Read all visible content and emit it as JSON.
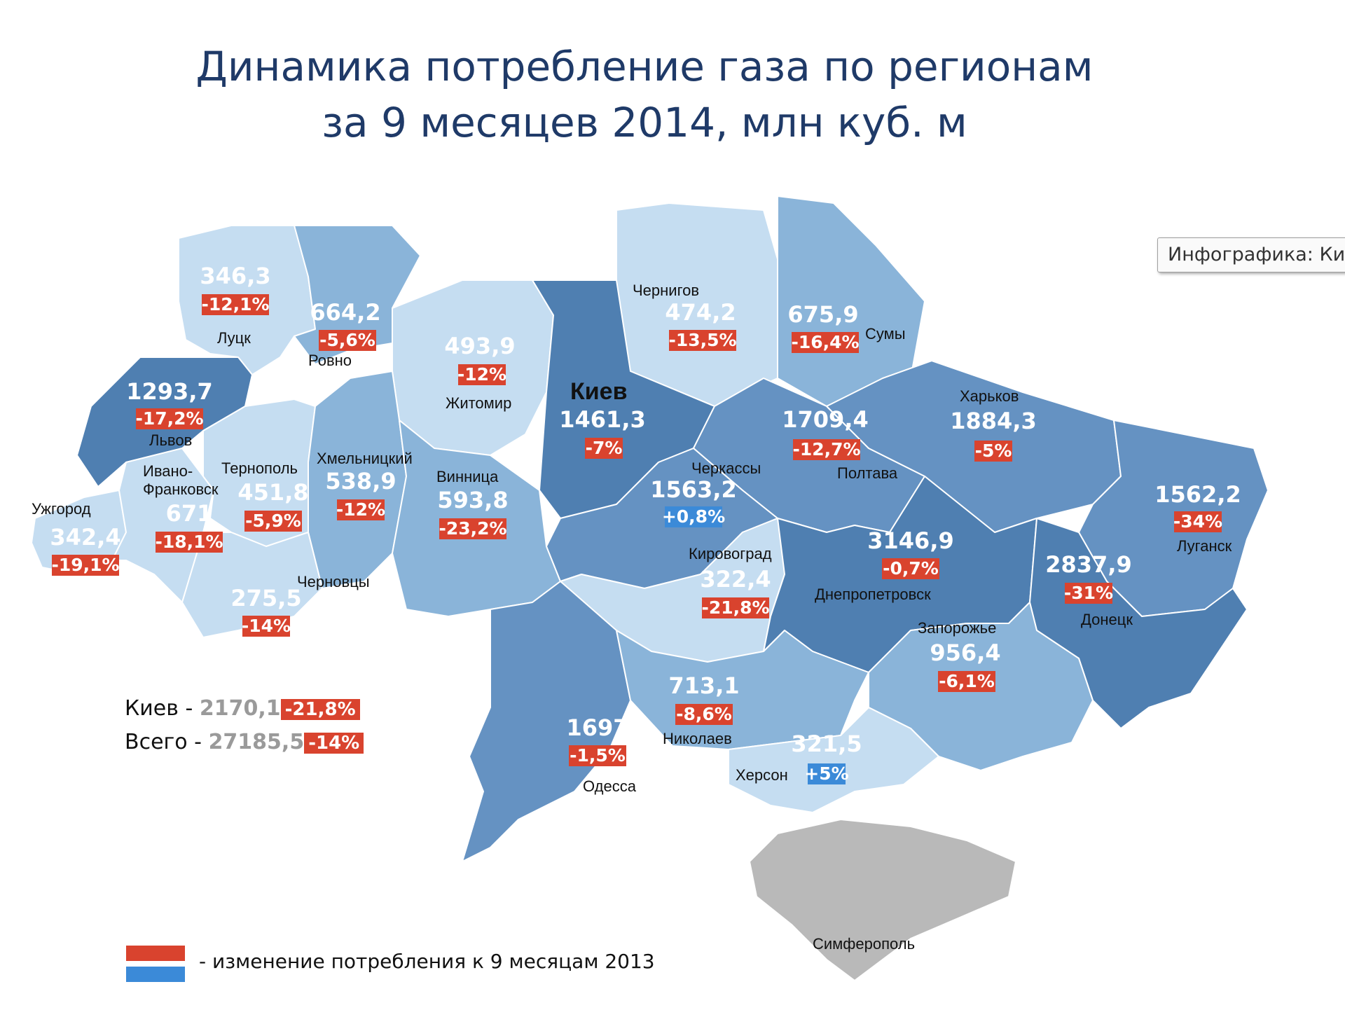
{
  "title_line1": "Динамика потребление газа по регионам",
  "title_line2": "за 9 месяцев 2014, млн куб. м",
  "tooltip": "Инфографика: Ки",
  "colors": {
    "dark": "#4f7fb1",
    "mid": "#6592c2",
    "light": "#8ab4d9",
    "pale": "#c5ddf1",
    "crimea": "#b9b9b9",
    "neg": "#d9432e",
    "pos": "#3b8ad8",
    "border": "#ffffff"
  },
  "regions": [
    {
      "city": "Луцк",
      "value": "346,3",
      "change": "-12,1%",
      "sign": "neg",
      "shade": "pale"
    },
    {
      "city": "Ровно",
      "value": "664,2",
      "change": "-5,6%",
      "sign": "neg",
      "shade": "light"
    },
    {
      "city": "Житомир",
      "value": "493,9",
      "change": "-12%",
      "sign": "neg",
      "shade": "pale"
    },
    {
      "city": "Чернигов",
      "value": "474,2",
      "change": "-13,5%",
      "sign": "neg",
      "shade": "pale"
    },
    {
      "city": "Сумы",
      "value": "675,9",
      "change": "-16,4%",
      "sign": "neg",
      "shade": "light"
    },
    {
      "city": "Львов",
      "value": "1293,7",
      "change": "-17,2%",
      "sign": "neg",
      "shade": "dark"
    },
    {
      "city": "Киев",
      "value": "1461,3",
      "change": "-7%",
      "sign": "neg",
      "shade": "dark"
    },
    {
      "city": "Полтава",
      "value": "1709,4",
      "change": "-12,7%",
      "sign": "neg",
      "shade": "mid"
    },
    {
      "city": "Харьков",
      "value": "1884,3",
      "change": "-5%",
      "sign": "neg",
      "shade": "mid"
    },
    {
      "city": "Ужгород",
      "value": "342,4",
      "change": "-19,1%",
      "sign": "neg",
      "shade": "pale"
    },
    {
      "city": "Ивано-Франковск",
      "value": "671",
      "change": "-18,1%",
      "sign": "neg",
      "shade": "pale"
    },
    {
      "city": "Тернополь",
      "value": "451,8",
      "change": "-5,9%",
      "sign": "neg",
      "shade": "pale"
    },
    {
      "city": "Хмельницкий",
      "value": "538,9",
      "change": "-12%",
      "sign": "neg",
      "shade": "light"
    },
    {
      "city": "Винница",
      "value": "593,8",
      "change": "-23,2%",
      "sign": "neg",
      "shade": "light"
    },
    {
      "city": "Черкассы",
      "value": "1563,2",
      "change": "+0,8%",
      "sign": "pos",
      "shade": "mid"
    },
    {
      "city": "Луганск",
      "value": "1562,2",
      "change": "-34%",
      "sign": "neg",
      "shade": "mid"
    },
    {
      "city": "Черновцы",
      "value": "275,5",
      "change": "-14%",
      "sign": "neg",
      "shade": "pale"
    },
    {
      "city": "Кировоград",
      "value": "322,4",
      "change": "-21,8%",
      "sign": "neg",
      "shade": "pale"
    },
    {
      "city": "Днепропетровск",
      "value": "3146,9",
      "change": "-0,7%",
      "sign": "neg",
      "shade": "dark"
    },
    {
      "city": "Донецк",
      "value": "2837,9",
      "change": "-31%",
      "sign": "neg",
      "shade": "dark"
    },
    {
      "city": "Запорожье",
      "value": "956,4",
      "change": "-6,1%",
      "sign": "neg",
      "shade": "light"
    },
    {
      "city": "Одесса",
      "value": "1697",
      "change": "-1,5%",
      "sign": "neg",
      "shade": "mid"
    },
    {
      "city": "Николаев",
      "value": "713,1",
      "change": "-8,6%",
      "sign": "neg",
      "shade": "light"
    },
    {
      "city": "Херсон",
      "value": "321,5",
      "change": "+5%",
      "sign": "pos",
      "shade": "pale"
    },
    {
      "city": "Симферополь",
      "value": "",
      "change": "",
      "sign": "",
      "shade": "crimea"
    }
  ],
  "summary": {
    "kiev_label": "Киев -",
    "kiev_value": "2170,1",
    "kiev_change": "-21,8%",
    "total_label": "Всего -",
    "total_value": "27185,5",
    "total_change": "-14%"
  },
  "legend_text": "- изменение потребления к 9 месяцам 2013"
}
